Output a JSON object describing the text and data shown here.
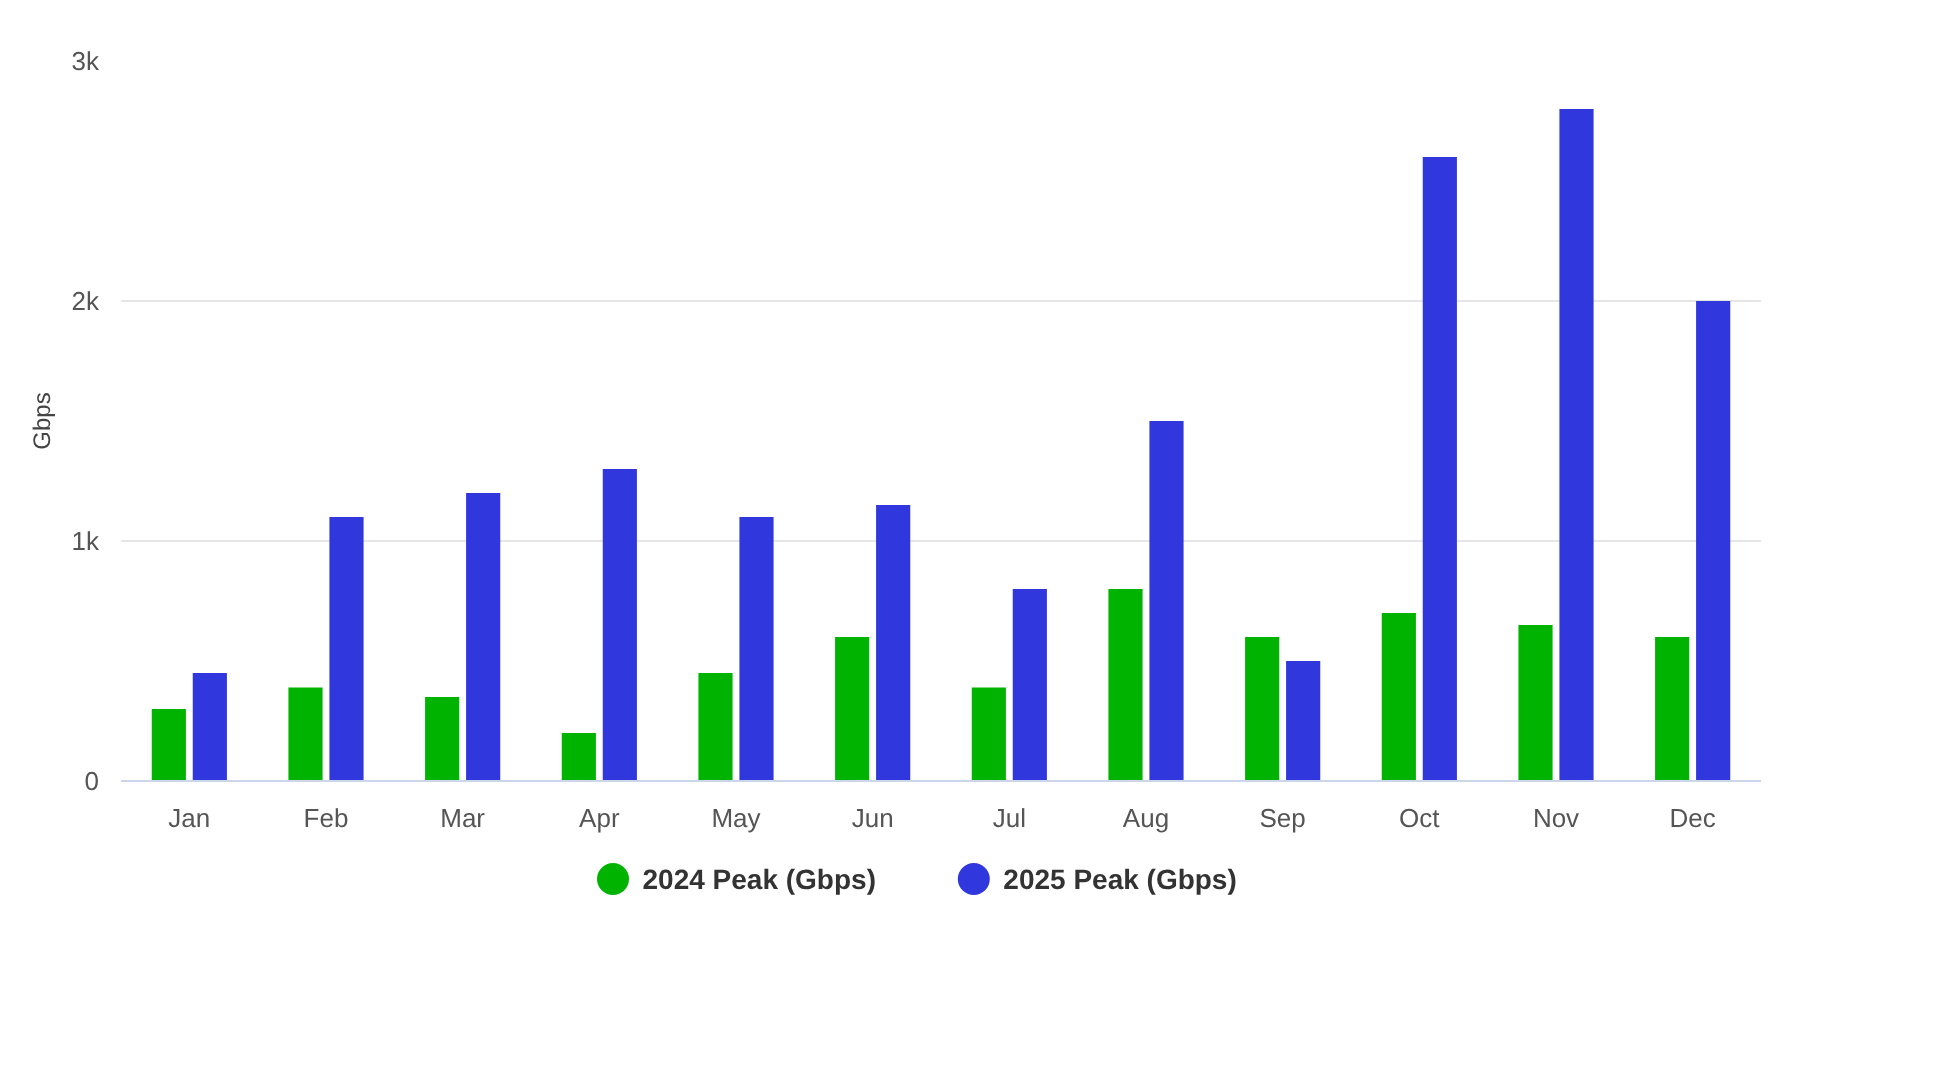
{
  "chart_data": {
    "type": "bar",
    "ylabel": "Gbps",
    "categories": [
      "Jan",
      "Feb",
      "Mar",
      "Apr",
      "May",
      "Jun",
      "Jul",
      "Aug",
      "Sep",
      "Oct",
      "Nov",
      "Dec"
    ],
    "series": [
      {
        "name": "2024 Peak (Gbps)",
        "color": "#00b300",
        "values": [
          300,
          390,
          350,
          200,
          450,
          600,
          390,
          800,
          600,
          700,
          650,
          600
        ]
      },
      {
        "name": "2025 Peak (Gbps)",
        "color": "#2f37dd",
        "values": [
          450,
          1100,
          1200,
          1300,
          1100,
          1150,
          800,
          1500,
          500,
          2600,
          2800,
          2000
        ]
      }
    ],
    "ylim": [
      0,
      3000
    ],
    "yticks": [
      0,
      {
        "value": 1000,
        "label": "1k"
      },
      {
        "value": 2000,
        "label": "2k"
      },
      {
        "value": 3000,
        "label": "3k"
      }
    ],
    "grid": "y",
    "legend": "bottom"
  }
}
